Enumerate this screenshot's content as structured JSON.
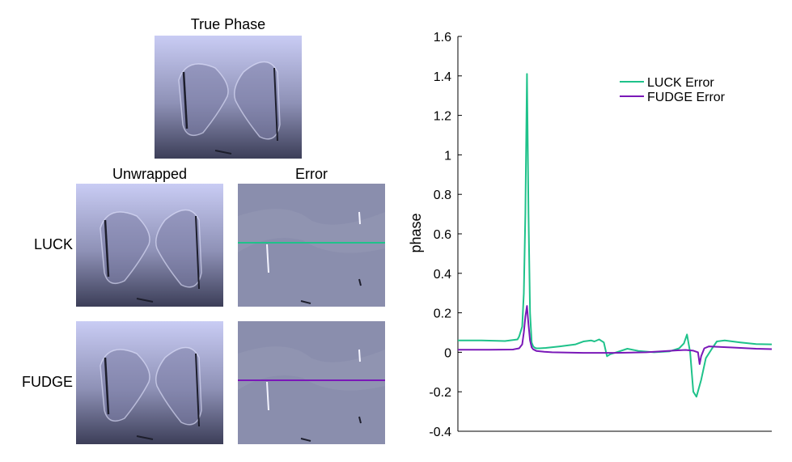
{
  "panels": {
    "true_phase_title": "True Phase",
    "unwrapped_title": "Unwrapped",
    "error_title": "Error",
    "rows": [
      "LUCK",
      "FUDGE"
    ]
  },
  "colors": {
    "luck": "#1fc28a",
    "fudge": "#7a18b8",
    "error_bg": "#8a8ead",
    "image_light": "#c9ccf4",
    "image_dark": "#3c3e58"
  },
  "chart_data": {
    "type": "line",
    "title": "",
    "xlabel": "",
    "ylabel": "phase",
    "ylim": [
      -0.4,
      1.6
    ],
    "yticks": [
      -0.4,
      -0.2,
      0,
      0.2,
      0.4,
      0.6,
      0.8,
      1,
      1.2,
      1.4,
      1.6
    ],
    "ytick_labels": [
      "-0.4",
      "-0.2",
      "0",
      "0.2",
      "0.4",
      "0.6",
      "0.8",
      "1",
      "1.2",
      "1.4",
      "1.6"
    ],
    "xlim": [
      0,
      200
    ],
    "legend_position": "top-right",
    "series": [
      {
        "name": "LUCK Error",
        "color": "#1fc28a",
        "x": [
          0,
          15,
          30,
          38,
          39,
          41,
          42,
          43,
          44,
          45,
          46,
          47,
          48,
          49,
          50,
          52,
          56,
          65,
          75,
          80,
          85,
          87,
          90,
          93,
          95,
          97,
          101,
          108,
          115,
          125,
          135,
          141,
          144,
          146,
          148,
          150,
          152,
          155,
          158,
          162,
          165,
          170,
          180,
          190,
          200
        ],
        "y": [
          0.06,
          0.06,
          0.057,
          0.065,
          0.08,
          0.13,
          0.3,
          0.7,
          1.41,
          0.7,
          0.2,
          0.05,
          0.03,
          0.023,
          0.02,
          0.02,
          0.022,
          0.03,
          0.04,
          0.055,
          0.06,
          0.055,
          0.065,
          0.05,
          -0.02,
          -0.01,
          0.0,
          0.018,
          0.007,
          0.0,
          0.005,
          0.02,
          0.045,
          0.09,
          0.0,
          -0.2,
          -0.225,
          -0.14,
          -0.03,
          0.02,
          0.055,
          0.06,
          0.05,
          0.042,
          0.04
        ]
      },
      {
        "name": "FUDGE Error",
        "color": "#7a18b8",
        "x": [
          0,
          20,
          35,
          39,
          41,
          42,
          43,
          44,
          45,
          46,
          47,
          48,
          50,
          55,
          60,
          80,
          100,
          120,
          140,
          145,
          150,
          153,
          154,
          155,
          157,
          160,
          165,
          175,
          190,
          200
        ],
        "y": [
          0.013,
          0.013,
          0.014,
          0.02,
          0.04,
          0.1,
          0.18,
          0.235,
          0.14,
          0.06,
          0.025,
          0.015,
          0.007,
          0.003,
          0.0,
          -0.003,
          -0.003,
          0.0,
          0.01,
          0.012,
          0.008,
          0.0,
          -0.06,
          -0.02,
          0.02,
          0.03,
          0.028,
          0.024,
          0.018,
          0.016
        ]
      }
    ]
  }
}
